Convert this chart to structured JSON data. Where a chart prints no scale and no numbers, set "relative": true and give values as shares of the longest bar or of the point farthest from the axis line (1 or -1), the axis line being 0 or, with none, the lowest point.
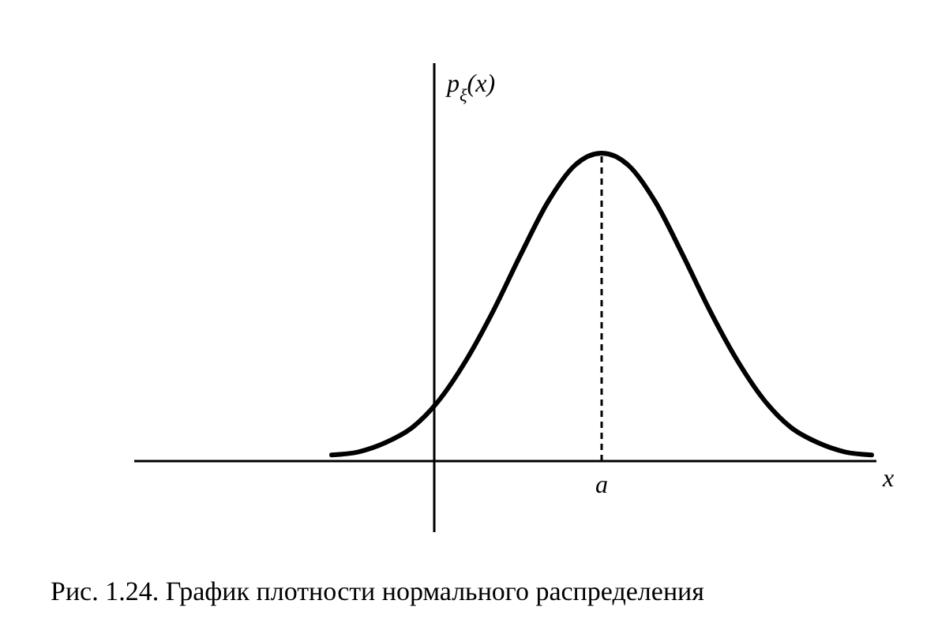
{
  "chart_data": {
    "type": "line",
    "relative": true,
    "title": "Рис. 1.24. График плотности нормального распределения",
    "xlabel": "x",
    "ylabel": "p$_{ξ}$(x)",
    "categories": [
      null,
      null,
      null,
      null,
      null,
      null,
      null,
      null,
      null,
      null,
      null,
      null,
      null,
      null,
      null,
      null,
      null,
      null,
      null,
      null,
      null
    ],
    "series": [
      {
        "color": "#000000",
        "values": [
          0.02,
          0.03,
          0.06,
          0.11,
          0.2,
          0.33,
          0.49,
          0.67,
          0.84,
          0.96,
          1,
          0.96,
          0.84,
          0.67,
          0.49,
          0.33,
          0.2,
          0.11,
          0.06,
          0.03,
          0.02
        ]
      }
    ],
    "annotations": [
      "a"
    ],
    "line_style": "solid"
  }
}
